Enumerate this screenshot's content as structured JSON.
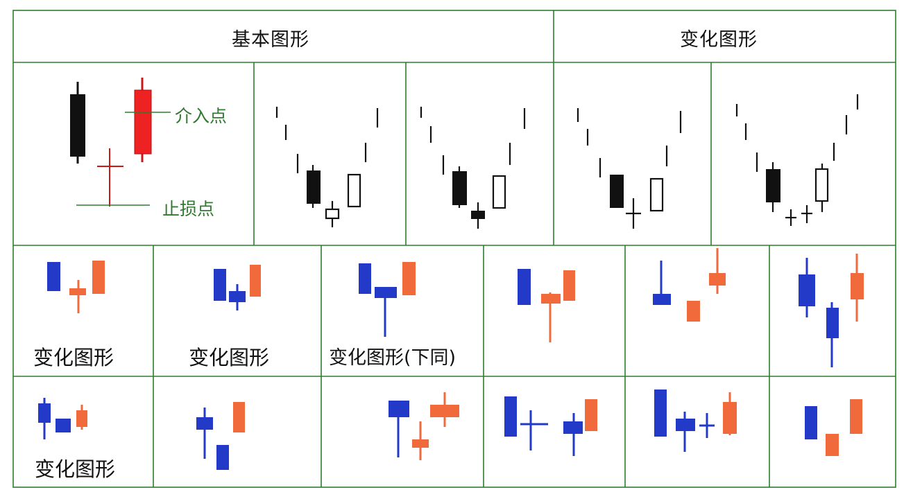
{
  "header": {
    "basic_label": "基本图形",
    "variant_label": "变化图形"
  },
  "annotations": {
    "entry_point": "介入点",
    "stop_loss": "止损点"
  },
  "row2_labels": {
    "label_1": "变化图形",
    "label_2": "变化图形",
    "label_3": "变化图形(下同)"
  },
  "row3_labels": {
    "label_1": "变化图形"
  },
  "colors": {
    "bull_red": "#ee2222",
    "bear_black": "#111111",
    "blue": "#2339c8",
    "orange": "#f06a3c",
    "grid_line": "#2e7d2e",
    "entry_line": "#2e7d2e",
    "stop_line": "#2e7d2e"
  }
}
